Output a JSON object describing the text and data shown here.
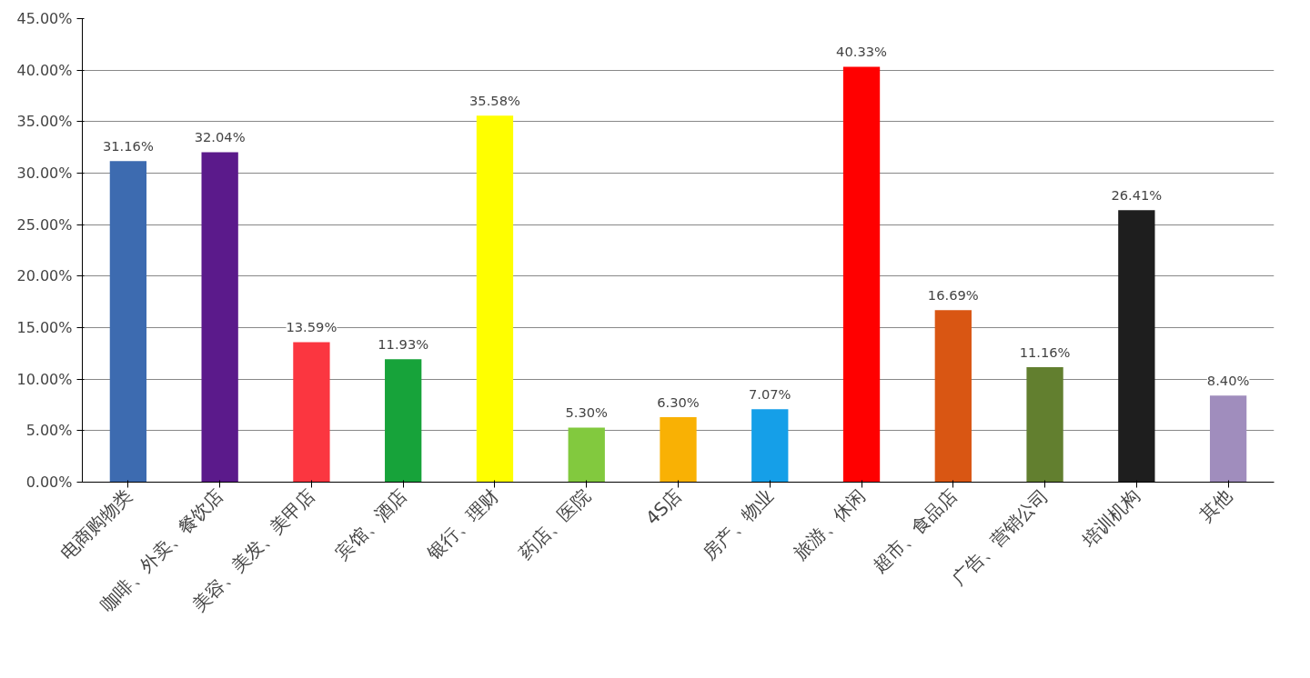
{
  "chart_data": {
    "type": "bar",
    "categories": [
      "电商购物类",
      "咖啡、外卖、餐饮店",
      "美容、美发、美甲店",
      "宾馆、酒店",
      "银行、理财",
      "药店、医院",
      "4S店",
      "房产、物业",
      "旅游、休闲",
      "超市、食品店",
      "广告、营销公司",
      "培训机构",
      "其他"
    ],
    "values": [
      31.16,
      32.04,
      13.59,
      11.93,
      35.58,
      5.3,
      6.3,
      7.07,
      40.33,
      16.69,
      11.16,
      26.41,
      8.4
    ],
    "value_labels": [
      "31.16%",
      "32.04%",
      "13.59%",
      "11.93%",
      "35.58%",
      "5.30%",
      "6.30%",
      "7.07%",
      "40.33%",
      "16.69%",
      "11.16%",
      "26.41%",
      "8.40%"
    ],
    "colors": [
      "#3d6bb0",
      "#5b1a8b",
      "#fb3640",
      "#17a33a",
      "#ffff00",
      "#82c93e",
      "#f9b104",
      "#159fe8",
      "#ff0000",
      "#d95613",
      "#627f2f",
      "#1e1e1e",
      "#a08dbd"
    ],
    "ylim": [
      0,
      45
    ],
    "yticks": [
      {
        "value": 0,
        "label": "0.00%"
      },
      {
        "value": 5,
        "label": "5.00%"
      },
      {
        "value": 10,
        "label": "10.00%"
      },
      {
        "value": 15,
        "label": "15.00%"
      },
      {
        "value": 20,
        "label": "20.00%"
      },
      {
        "value": 25,
        "label": "25.00%"
      },
      {
        "value": 30,
        "label": "30.00%"
      },
      {
        "value": 35,
        "label": "35.00%"
      },
      {
        "value": 40,
        "label": "40.00%"
      },
      {
        "value": 45,
        "label": "45.00%"
      }
    ],
    "grid": "y"
  }
}
